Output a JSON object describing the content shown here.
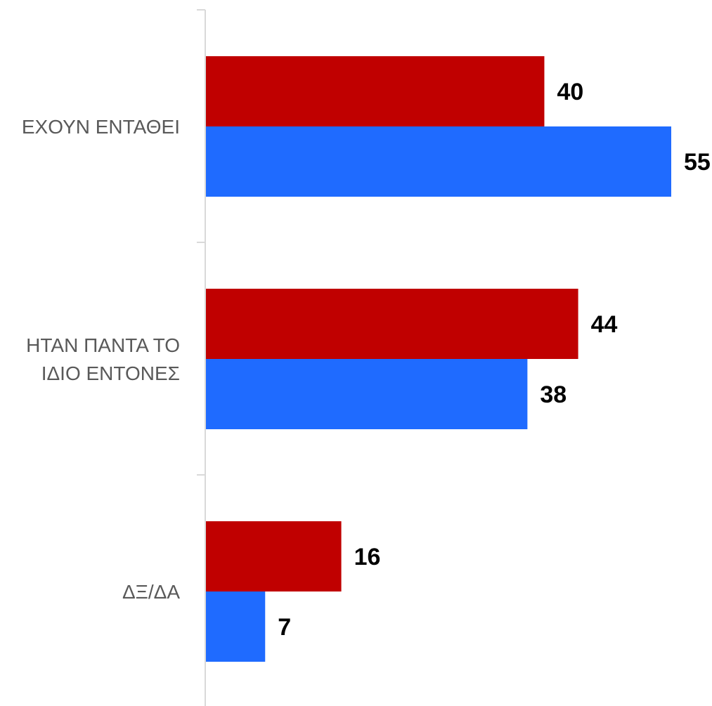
{
  "chart_data": {
    "type": "bar",
    "orientation": "horizontal",
    "categories": [
      "ΕΧΟΥΝ ΕΝΤΑΘΕΙ",
      "ΗΤΑΝ ΠΑΝΤΑ ΤΟ ΙΔΙΟ ΕΝΤΟΝΕΣ",
      "ΔΞ/ΔΑ"
    ],
    "category_lines": [
      [
        "ΕΧΟΥΝ ΕΝΤΑΘΕΙ"
      ],
      [
        "ΗΤΑΝ ΠΑΝΤΑ ΤΟ",
        "ΙΔΙΟ ΕΝΤΟΝΕΣ"
      ],
      [
        "ΔΞ/ΔΑ"
      ]
    ],
    "series": [
      {
        "values": [
          40,
          44,
          16
        ],
        "color": "#C00000"
      },
      {
        "values": [
          55,
          38,
          7
        ],
        "color": "#1F6BFF"
      }
    ],
    "xlim": [
      0,
      55
    ],
    "grid": false,
    "legend": "none",
    "data_labels": true,
    "axis_color": "#D9D9D9"
  }
}
